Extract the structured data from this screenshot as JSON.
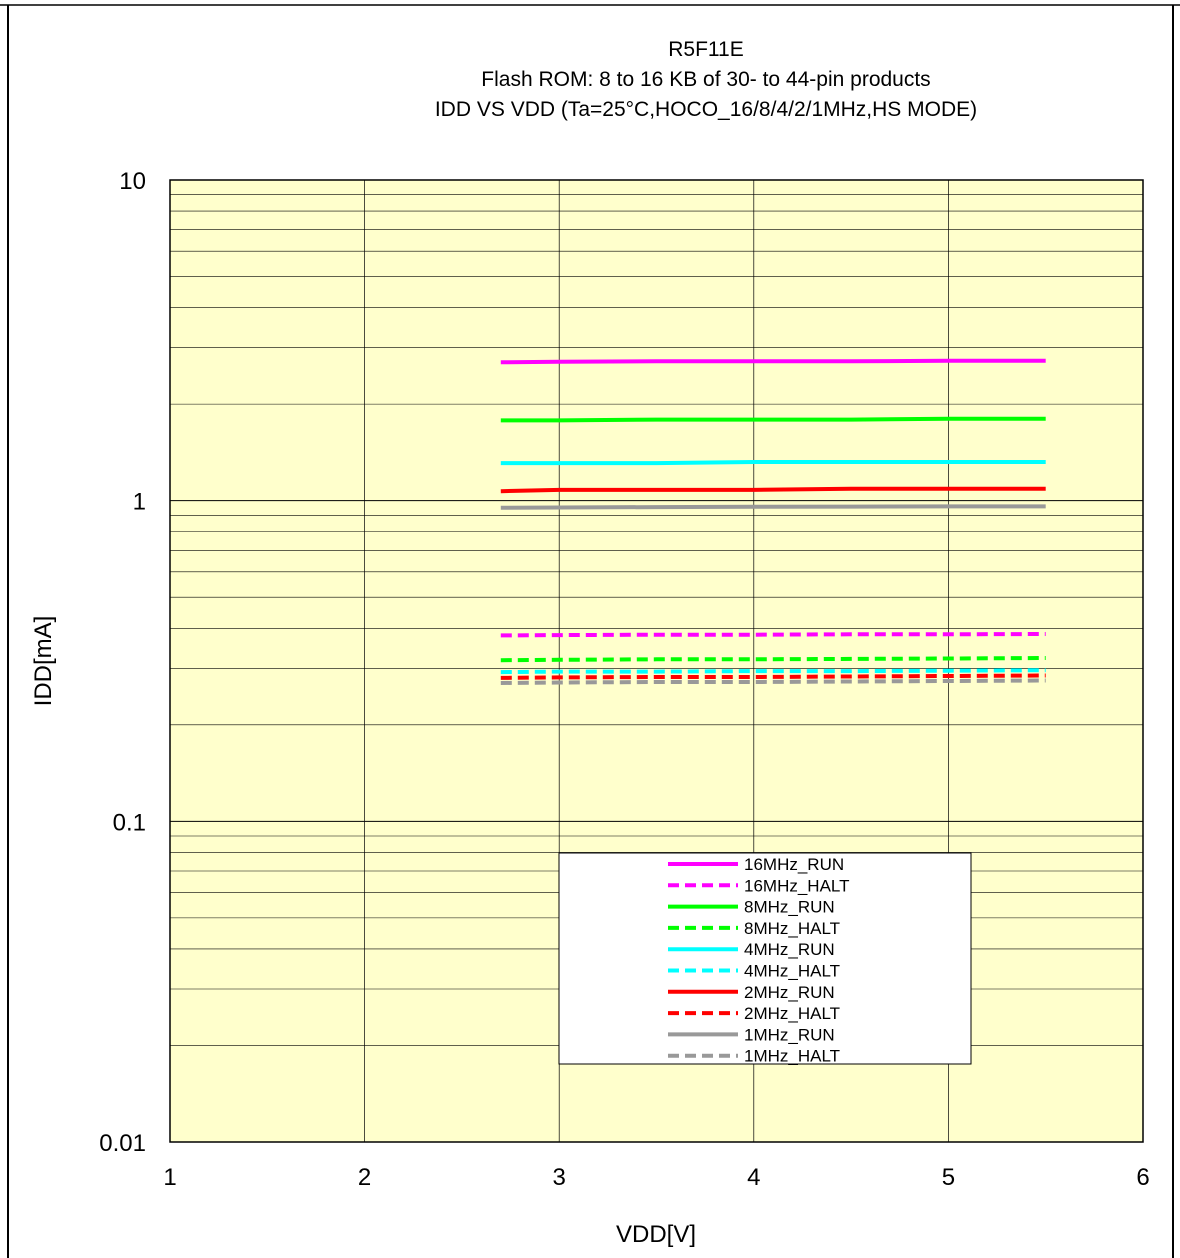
{
  "chart_data": {
    "type": "line",
    "title": [
      "R5F11E",
      "Flash ROM: 8 to 16 KB of 30- to 44-pin products",
      "IDD VS VDD (Ta=25°C,HOCO_16/8/4/2/1MHz,HS MODE)"
    ],
    "xlabel": "VDD[V]",
    "ylabel": "IDD[mA]",
    "xlim": [
      1,
      6
    ],
    "ylim": [
      0.01,
      10
    ],
    "yscale": "log",
    "grid": true,
    "plot_background": "#FFFFCC",
    "legend_position": "bottom-center",
    "x_ticks": [
      "1",
      "2",
      "3",
      "4",
      "5",
      "6"
    ],
    "y_ticks": [
      {
        "value": 10,
        "label": "10"
      },
      {
        "value": 1,
        "label": "1"
      },
      {
        "value": 0.1,
        "label": "0.1"
      },
      {
        "value": 0.01,
        "label": "0.01"
      }
    ],
    "x": [
      2.7,
      3.0,
      3.5,
      4.0,
      4.5,
      5.0,
      5.5
    ],
    "series": [
      {
        "name": "16MHz_RUN",
        "color": "#FF00FF",
        "dashed": false,
        "values": [
          2.7,
          2.71,
          2.72,
          2.72,
          2.72,
          2.73,
          2.73
        ]
      },
      {
        "name": "16MHz_HALT",
        "color": "#FF00FF",
        "dashed": true,
        "values": [
          0.38,
          0.381,
          0.382,
          0.382,
          0.383,
          0.383,
          0.384
        ]
      },
      {
        "name": "8MHz_RUN",
        "color": "#00FF00",
        "dashed": false,
        "values": [
          1.78,
          1.78,
          1.79,
          1.79,
          1.79,
          1.8,
          1.8
        ]
      },
      {
        "name": "8MHz_HALT",
        "color": "#00FF00",
        "dashed": true,
        "values": [
          0.318,
          0.319,
          0.32,
          0.32,
          0.321,
          0.322,
          0.323
        ]
      },
      {
        "name": "4MHz_RUN",
        "color": "#00FFFF",
        "dashed": false,
        "values": [
          1.31,
          1.31,
          1.31,
          1.32,
          1.32,
          1.32,
          1.32
        ]
      },
      {
        "name": "4MHz_HALT",
        "color": "#00FFFF",
        "dashed": true,
        "values": [
          0.292,
          0.293,
          0.293,
          0.294,
          0.294,
          0.295,
          0.296
        ]
      },
      {
        "name": "2MHz_RUN",
        "color": "#FF0000",
        "dashed": false,
        "values": [
          1.07,
          1.08,
          1.08,
          1.08,
          1.09,
          1.09,
          1.09
        ]
      },
      {
        "name": "2MHz_HALT",
        "color": "#FF0000",
        "dashed": true,
        "values": [
          0.28,
          0.281,
          0.282,
          0.282,
          0.283,
          0.284,
          0.285
        ]
      },
      {
        "name": "1MHz_RUN",
        "color": "#999999",
        "dashed": false,
        "values": [
          0.95,
          0.952,
          0.955,
          0.957,
          0.958,
          0.96,
          0.96
        ]
      },
      {
        "name": "1MHz_HALT",
        "color": "#999999",
        "dashed": true,
        "values": [
          0.27,
          0.271,
          0.272,
          0.272,
          0.273,
          0.274,
          0.275
        ]
      }
    ]
  }
}
